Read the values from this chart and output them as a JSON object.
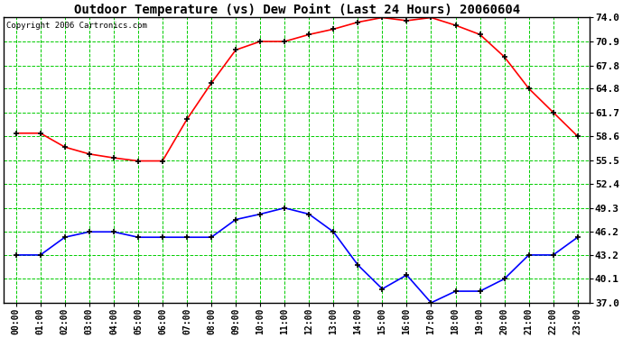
{
  "title": "Outdoor Temperature (vs) Dew Point (Last 24 Hours) 20060604",
  "copyright_text": "Copyright 2006 Cartronics.com",
  "hours": [
    "00:00",
    "01:00",
    "02:00",
    "03:00",
    "04:00",
    "05:00",
    "06:00",
    "07:00",
    "08:00",
    "09:00",
    "10:00",
    "11:00",
    "12:00",
    "13:00",
    "14:00",
    "15:00",
    "16:00",
    "17:00",
    "18:00",
    "19:00",
    "20:00",
    "21:00",
    "22:00",
    "23:00"
  ],
  "temp": [
    59.0,
    59.0,
    57.2,
    56.3,
    55.8,
    55.4,
    55.4,
    60.8,
    65.5,
    69.8,
    70.9,
    70.9,
    71.8,
    72.5,
    73.4,
    74.0,
    73.6,
    74.0,
    73.0,
    71.8,
    68.9,
    64.8,
    61.7,
    58.6
  ],
  "dewpoint": [
    43.2,
    43.2,
    45.5,
    46.2,
    46.2,
    45.5,
    45.5,
    45.5,
    45.5,
    47.8,
    48.5,
    49.3,
    48.5,
    46.2,
    41.9,
    38.8,
    40.6,
    37.0,
    38.5,
    38.5,
    40.1,
    43.2,
    43.2,
    45.5
  ],
  "ylim": [
    37.0,
    74.0
  ],
  "yticks": [
    37.0,
    40.1,
    43.2,
    46.2,
    49.3,
    52.4,
    55.5,
    58.6,
    61.7,
    64.8,
    67.8,
    70.9,
    74.0
  ],
  "temp_color": "#ff0000",
  "dew_color": "#0000ff",
  "bg_color": "#ffffff",
  "grid_color": "#00cc00",
  "title_fontsize": 10,
  "copyright_fontsize": 6.5,
  "tick_fontsize": 7,
  "ytick_fontsize": 8
}
